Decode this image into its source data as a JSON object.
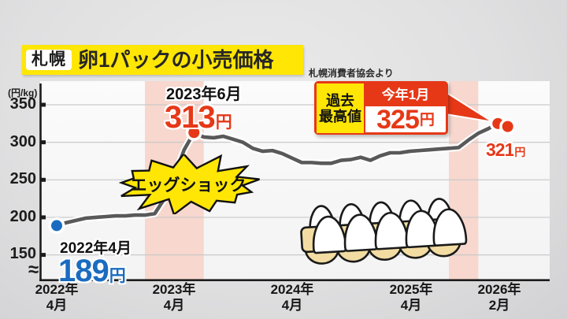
{
  "title": {
    "badge": "札幌",
    "text": "卵1パックの小売価格"
  },
  "source": "札幌消費者協会より",
  "y_axis": {
    "unit": "(円/kg)",
    "break_symbol": "≈",
    "ticks": [
      350,
      300,
      250,
      200,
      150
    ]
  },
  "x_axis": {
    "labels": [
      {
        "line1": "2022年",
        "line2": "4月"
      },
      {
        "line1": "2023年",
        "line2": "4月"
      },
      {
        "line1": "2024年",
        "line2": "4月"
      },
      {
        "line1": "2025年",
        "line2": "4月"
      },
      {
        "line1": "2026年",
        "line2": "2月"
      }
    ]
  },
  "annotations": {
    "start": {
      "date": "2022年4月",
      "price": "189",
      "unit": "円"
    },
    "peak": {
      "date": "2023年6月",
      "price": "313",
      "unit": "円"
    },
    "egg_shock": "エッグショック",
    "record": {
      "label_line1": "過去",
      "label_line2": "最高値",
      "header": "今年1月",
      "price": "325",
      "unit": "円"
    },
    "latest": {
      "price": "321",
      "unit": "円"
    }
  },
  "colors": {
    "accent_red": "#e63817",
    "accent_blue": "#1a6cc0",
    "highlight_yellow": "#ffe605",
    "band_pink": "#f7d7ce",
    "line_gray": "#595959",
    "grid_gray": "#c9c9c9"
  },
  "chart_data": {
    "type": "line",
    "title": "札幌 卵1パックの小売価格",
    "ylabel": "円/kg",
    "ylim": [
      150,
      350
    ],
    "grid": "horizontal",
    "x": [
      "2022-04",
      "2022-05",
      "2022-06",
      "2022-07",
      "2022-08",
      "2022-09",
      "2022-10",
      "2022-11",
      "2022-12",
      "2023-01",
      "2023-02",
      "2023-03",
      "2023-04",
      "2023-05",
      "2023-06",
      "2023-07",
      "2023-08",
      "2023-09",
      "2023-10",
      "2023-11",
      "2023-12",
      "2024-01",
      "2024-02",
      "2024-03",
      "2024-04",
      "2024-05",
      "2024-06",
      "2024-07",
      "2024-08",
      "2024-09",
      "2024-10",
      "2024-11",
      "2024-12",
      "2025-01",
      "2025-02",
      "2025-03",
      "2025-04",
      "2025-05",
      "2025-06",
      "2025-07",
      "2025-08",
      "2025-09",
      "2025-10",
      "2025-11",
      "2025-12",
      "2026-01",
      "2026-02"
    ],
    "values": [
      189,
      193,
      196,
      199,
      200,
      201,
      202,
      202,
      203,
      203,
      205,
      225,
      255,
      290,
      313,
      307,
      306,
      308,
      304,
      300,
      292,
      288,
      289,
      285,
      279,
      273,
      273,
      272,
      272,
      276,
      277,
      280,
      276,
      282,
      286,
      286,
      288,
      289,
      290,
      291,
      292,
      293,
      303,
      312,
      318,
      325,
      321
    ],
    "highlight_bands": [
      {
        "from": "2023-01",
        "to": "2023-07",
        "label": "エッグショック"
      },
      {
        "from": "2025-08",
        "to": "2025-11",
        "label": ""
      }
    ],
    "markers": [
      {
        "x": "2022-04",
        "value": 189,
        "color": "blue",
        "label": "2022年4月 189円"
      },
      {
        "x": "2023-06",
        "value": 313,
        "color": "red",
        "label": "2023年6月 313円"
      },
      {
        "x": "2026-01",
        "value": 325,
        "color": "red",
        "label": "過去最高値 今年1月 325円"
      },
      {
        "x": "2026-02",
        "value": 321,
        "color": "red",
        "label": "321円"
      }
    ]
  }
}
